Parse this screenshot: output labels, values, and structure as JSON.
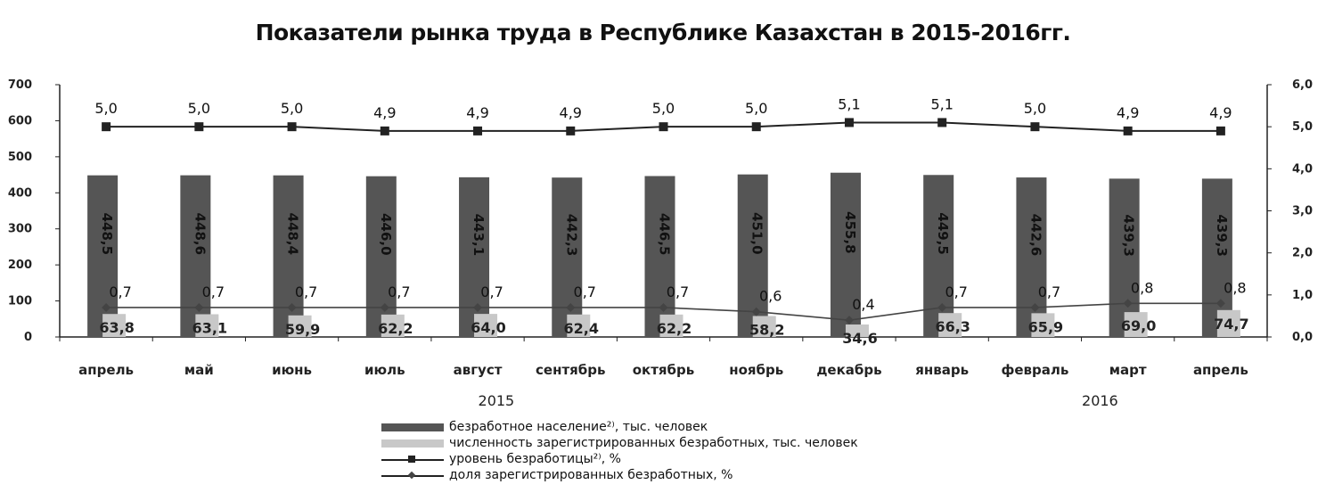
{
  "chart_data": {
    "type": "bar",
    "title": "Показатели рынка труда в Республике Казахстан в 2015-2016гг.",
    "categories": [
      "апрель",
      "май",
      "июнь",
      "июль",
      "август",
      "сентябрь",
      "октябрь",
      "ноябрь",
      "декабрь",
      "январь",
      "февраль",
      "март",
      "апрель"
    ],
    "year_labels": [
      "2015",
      "2016"
    ],
    "y_left": {
      "ylim": [
        0,
        700
      ],
      "ticks": [
        "0",
        "100",
        "200",
        "300",
        "400",
        "500",
        "600",
        "700"
      ]
    },
    "y_right": {
      "ylim": [
        0,
        6
      ],
      "ticks": [
        "0,0",
        "1,0",
        "2,0",
        "3,0",
        "4,0",
        "5,0",
        "6,0"
      ]
    },
    "series": [
      {
        "name": "безработное население²⁾, тыс. человек",
        "type": "bar",
        "axis": "left",
        "color": "#555555",
        "values": [
          448.5,
          448.6,
          448.4,
          446.0,
          443.1,
          442.3,
          446.5,
          451.0,
          455.8,
          449.5,
          442.6,
          439.3,
          439.3
        ],
        "labels": [
          "448,5",
          "448,6",
          "448,4",
          "446,0",
          "443,1",
          "442,3",
          "446,5",
          "451,0",
          "455,8",
          "449,5",
          "442,6",
          "439,3",
          "439,3"
        ]
      },
      {
        "name": "численность зарегистрированных безработных, тыс. человек",
        "type": "bar",
        "axis": "left",
        "color": "#c8c8c8",
        "values": [
          63.8,
          63.1,
          59.9,
          62.2,
          64.0,
          62.4,
          62.2,
          58.2,
          34.6,
          66.3,
          65.9,
          69.0,
          74.7
        ],
        "labels": [
          "63,8",
          "63,1",
          "59,9",
          "62,2",
          "64,0",
          "62,4",
          "62,2",
          "58,2",
          "34,6",
          "66,3",
          "65,9",
          "69,0",
          "74,7"
        ]
      },
      {
        "name": "уровень безработицы²⁾, %",
        "type": "line",
        "axis": "right",
        "color": "#222222",
        "marker": "square",
        "values": [
          5.0,
          5.0,
          5.0,
          4.9,
          4.9,
          4.9,
          5.0,
          5.0,
          5.1,
          5.1,
          5.0,
          4.9,
          4.9
        ],
        "labels": [
          "5,0",
          "5,0",
          "5,0",
          "4,9",
          "4,9",
          "4,9",
          "5,0",
          "5,0",
          "5,1",
          "5,1",
          "5,0",
          "4,9",
          "4,9"
        ]
      },
      {
        "name": "доля зарегистрированных безработных, %",
        "type": "line",
        "axis": "right",
        "color": "#444444",
        "marker": "diamond",
        "values": [
          0.7,
          0.7,
          0.7,
          0.7,
          0.7,
          0.7,
          0.7,
          0.6,
          0.4,
          0.7,
          0.7,
          0.8,
          0.8
        ],
        "labels": [
          "0,7",
          "0,7",
          "0,7",
          "0,7",
          "0,7",
          "0,7",
          "0,7",
          "0,6",
          "0,4",
          "0,7",
          "0,7",
          "0,8",
          "0,8"
        ]
      }
    ],
    "legend_position": "bottom"
  }
}
